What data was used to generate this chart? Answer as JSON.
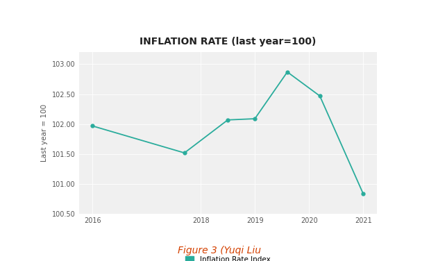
{
  "title": "INFLATION RATE (last year=100)",
  "ylabel": "Last year = 100",
  "x_values": [
    2016,
    2017.7,
    2018.5,
    2019.0,
    2019.6,
    2020.2,
    2021
  ],
  "y_values": [
    101.97,
    101.52,
    102.07,
    102.09,
    102.87,
    102.47,
    100.84
  ],
  "line_color": "#2aac9c",
  "marker_color": "#2aac9c",
  "plot_bg_color": "#f0f0f0",
  "outer_bg_color": "#f5f5f5",
  "white_bg": "#ffffff",
  "grid_color": "#ffffff",
  "ylim": [
    100.5,
    103.2
  ],
  "yticks": [
    100.5,
    101.0,
    101.5,
    102.0,
    102.5,
    103.0
  ],
  "xticks": [
    2016,
    2018,
    2019,
    2020,
    2021
  ],
  "legend_label": "Inflation Rate Index",
  "caption": "Figure 3 (Yuqi Liu",
  "title_fontsize": 10,
  "label_fontsize": 7.5,
  "tick_fontsize": 7,
  "caption_fontsize": 10
}
